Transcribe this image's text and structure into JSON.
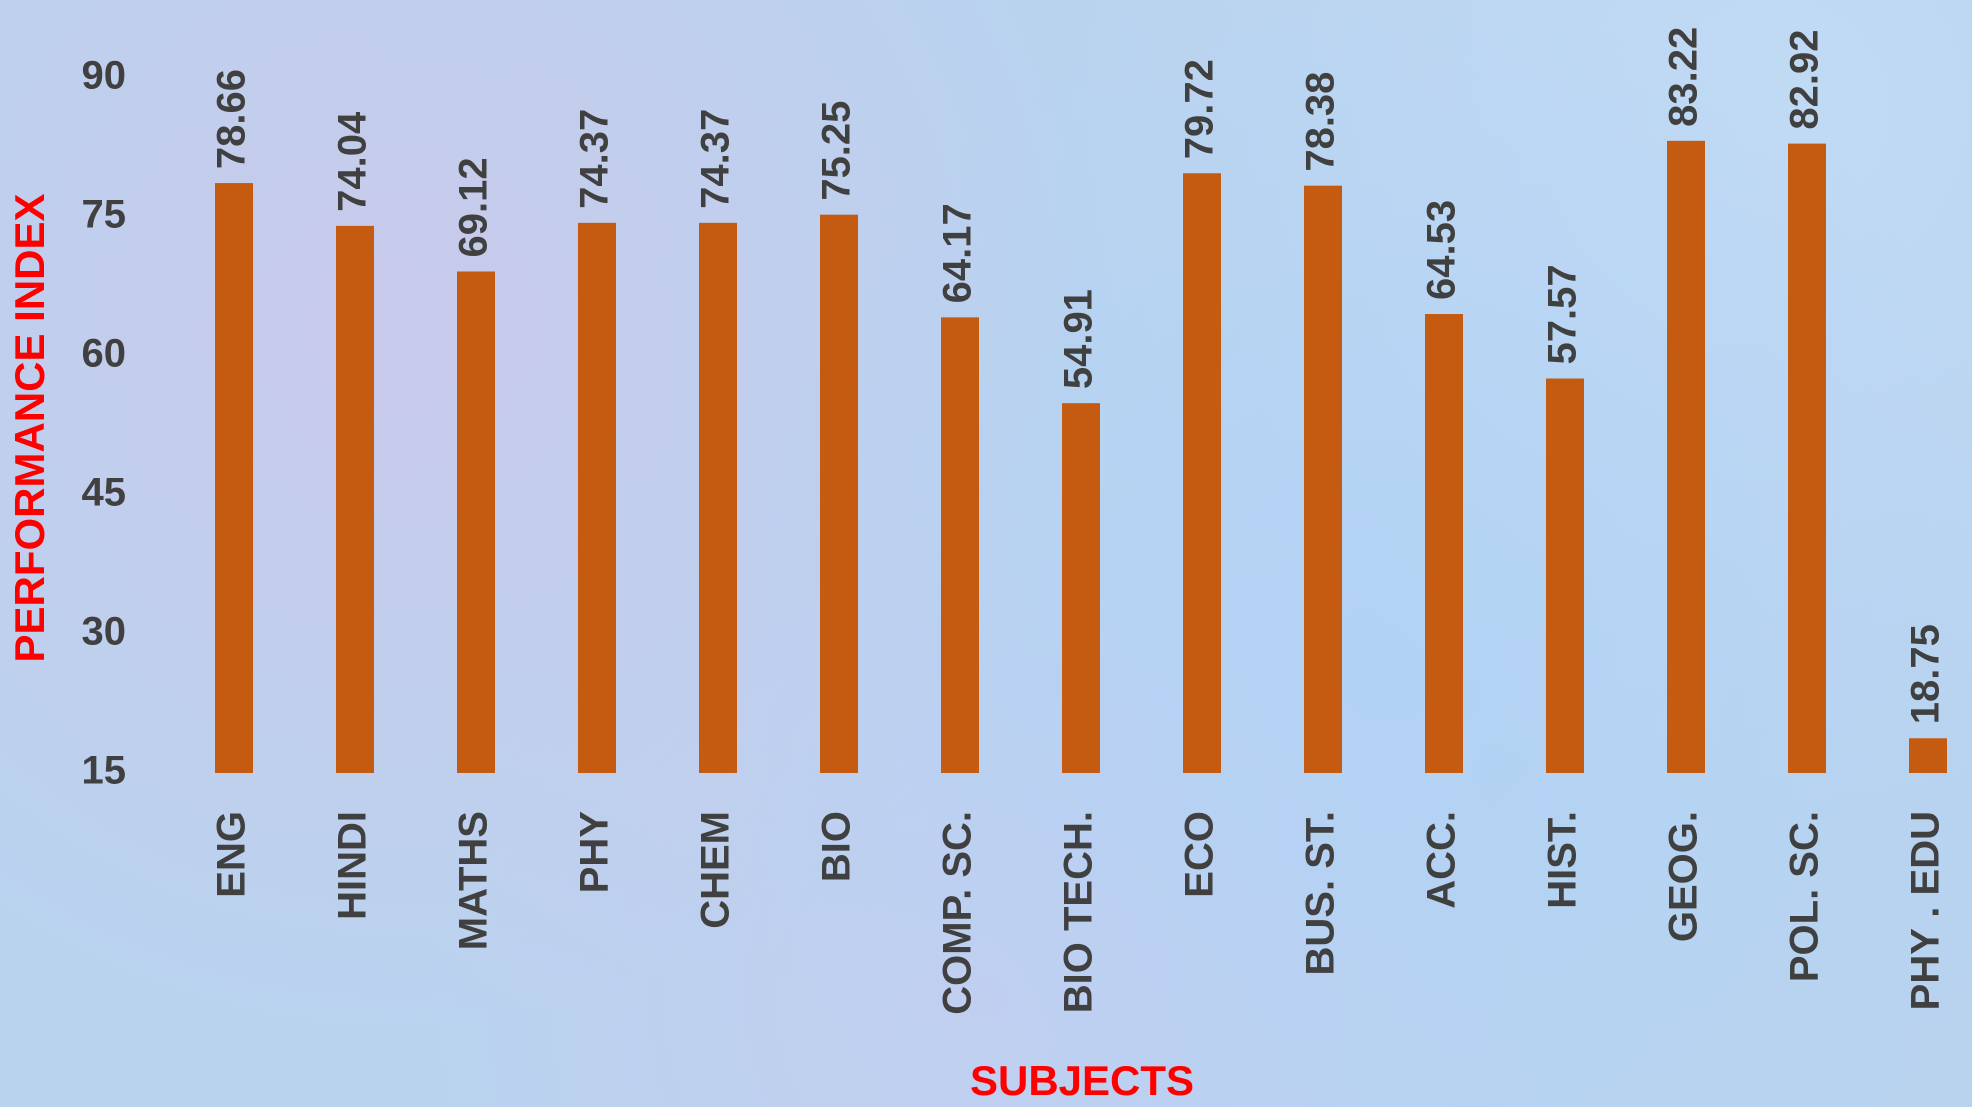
{
  "chart_data": {
    "type": "bar",
    "xlabel": "SUBJECTS",
    "ylabel": "PERFORMANCE INDEX",
    "categories": [
      "ENG",
      "HINDI",
      "MATHS",
      "PHY",
      "CHEM",
      "BIO",
      "COMP. SC.",
      "BIO TECH.",
      "ECO",
      "BUS. ST.",
      "ACC.",
      "HIST.",
      "GEOG.",
      "POL. SC.",
      "PHY . EDU"
    ],
    "values": [
      78.66,
      74.04,
      69.12,
      74.37,
      74.37,
      75.25,
      64.17,
      54.91,
      79.72,
      78.38,
      64.53,
      57.57,
      83.22,
      82.92,
      18.75
    ],
    "color": "#c55a11",
    "ylim": [
      15,
      90
    ],
    "yticks": [
      15,
      30,
      45,
      60,
      75,
      90
    ],
    "grid": false
  }
}
